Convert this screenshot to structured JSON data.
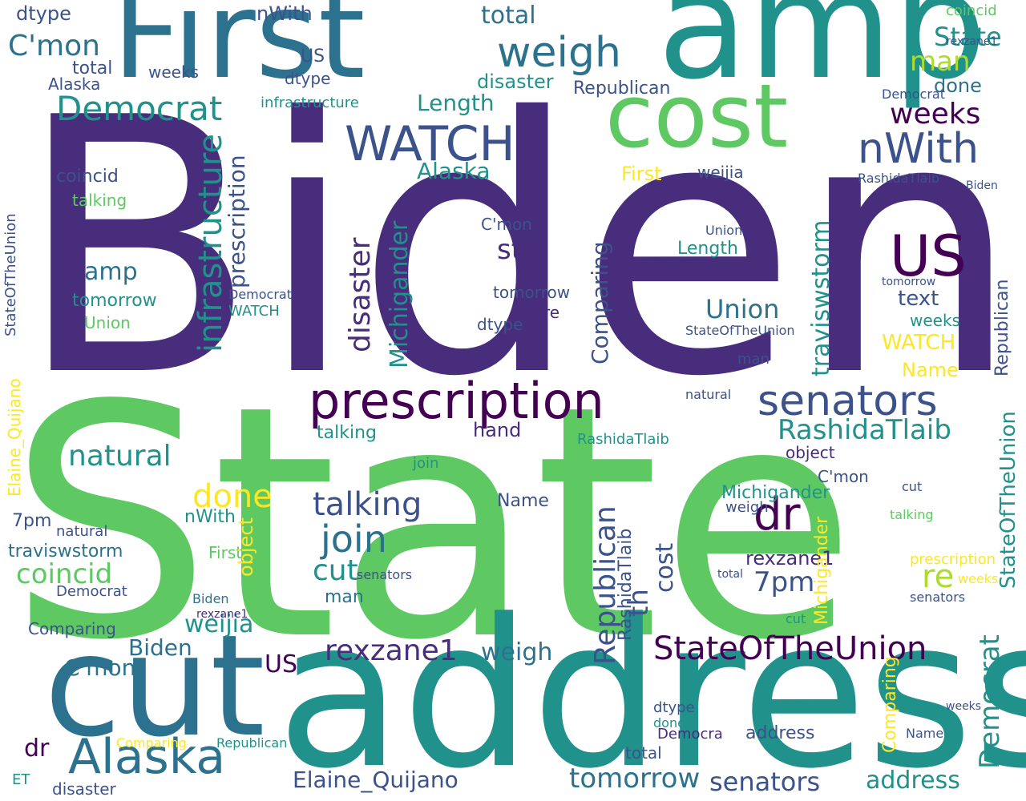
{
  "palette": {
    "purple": "#440154",
    "indigo": "#3b528b",
    "navy": "#472d7b",
    "teal": "#21918c",
    "blue_teal": "#2c728e",
    "green": "#5ec962",
    "mint": "#3fbc73",
    "lime": "#addc30",
    "yellow": "#fde725",
    "dark_blue": "#31688e"
  },
  "words": {
    "biden": "Biden",
    "state": "State",
    "address": "address",
    "amp": "amp",
    "first": "First",
    "cut": "cut",
    "cost": "cost",
    "prescription": "prescription",
    "senators": "senators",
    "democrat": "Democrat",
    "weigh": "weigh",
    "nwith": "nWith",
    "watch": "WATCH",
    "us": "US",
    "alaska": "Alaska",
    "rashidatlaib": "RashidaTlaib",
    "stateoftheunion": "StateOfTheUnion",
    "rexzane1": "rexzane1",
    "comparing": "Comparing",
    "infrastructure": "infrastructure",
    "michigander": "Michigander",
    "disaster": "disaster",
    "travisWstorm": "traviswstorm",
    "republican": "Republican",
    "elaine_quijano": "Elaine_Quijano",
    "tomorrow": "tomorrow",
    "talking": "talking",
    "natural": "natural",
    "coincid": "coincid",
    "done": "done",
    "join": "join",
    "dr": "dr",
    "seven_pm": "7pm",
    "re": "re",
    "cmon": "C'mon",
    "hand": "hand",
    "weeks": "weeks",
    "length": "Length",
    "union": "Union",
    "object": "object",
    "dtype": "dtype",
    "total": "total",
    "name": "Name",
    "weijia": "weijia",
    "st": "st",
    "man": "man",
    "th": "th",
    "et": "ET",
    "text": "text",
    "democra": "Democra"
  }
}
